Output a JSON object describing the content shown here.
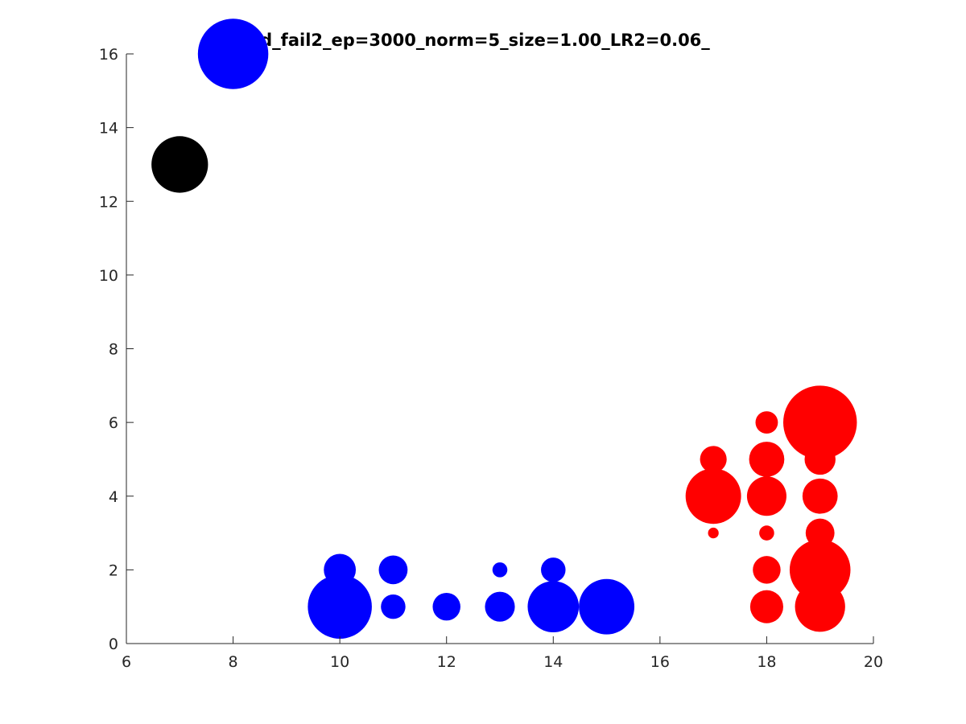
{
  "chart_data": {
    "type": "scatter",
    "title": "nd_fail2_ep=3000_norm=5_size=1.00_LR2=0.06_",
    "xlabel": "",
    "ylabel": "",
    "xlim": [
      6,
      20
    ],
    "ylim": [
      0,
      16
    ],
    "xticks": [
      "6",
      "8",
      "10",
      "12",
      "14",
      "16",
      "18",
      "20"
    ],
    "yticks": [
      "0",
      "2",
      "4",
      "6",
      "8",
      "10",
      "12",
      "14",
      "16"
    ],
    "grid": false,
    "legend": "none",
    "series": [
      {
        "color": "#0000ff",
        "points": [
          {
            "x": 8,
            "y": 16,
            "r": 0.66
          },
          {
            "x": 10,
            "y": 2,
            "r": 0.3
          },
          {
            "x": 10,
            "y": 1,
            "r": 0.6
          },
          {
            "x": 11,
            "y": 2,
            "r": 0.27
          },
          {
            "x": 11,
            "y": 1,
            "r": 0.23
          },
          {
            "x": 12,
            "y": 1,
            "r": 0.26
          },
          {
            "x": 13,
            "y": 2,
            "r": 0.14
          },
          {
            "x": 13,
            "y": 1,
            "r": 0.28
          },
          {
            "x": 14,
            "y": 2,
            "r": 0.23
          },
          {
            "x": 14,
            "y": 1,
            "r": 0.48
          },
          {
            "x": 15,
            "y": 1,
            "r": 0.52
          }
        ]
      },
      {
        "color": "#000000",
        "points": [
          {
            "x": 7,
            "y": 13,
            "r": 0.53
          }
        ]
      },
      {
        "color": "#ff0000",
        "points": [
          {
            "x": 17,
            "y": 5,
            "r": 0.25
          },
          {
            "x": 17,
            "y": 4,
            "r": 0.52
          },
          {
            "x": 17,
            "y": 3,
            "r": 0.1
          },
          {
            "x": 18,
            "y": 6,
            "r": 0.21
          },
          {
            "x": 18,
            "y": 5,
            "r": 0.33
          },
          {
            "x": 18,
            "y": 4,
            "r": 0.37
          },
          {
            "x": 18,
            "y": 3,
            "r": 0.14
          },
          {
            "x": 18,
            "y": 2,
            "r": 0.26
          },
          {
            "x": 18,
            "y": 1,
            "r": 0.31
          },
          {
            "x": 19,
            "y": 6,
            "r": 0.69
          },
          {
            "x": 19,
            "y": 5,
            "r": 0.29
          },
          {
            "x": 19,
            "y": 4,
            "r": 0.33
          },
          {
            "x": 19,
            "y": 3,
            "r": 0.27
          },
          {
            "x": 19,
            "y": 2,
            "r": 0.57
          },
          {
            "x": 19,
            "y": 1,
            "r": 0.47
          }
        ]
      }
    ]
  }
}
